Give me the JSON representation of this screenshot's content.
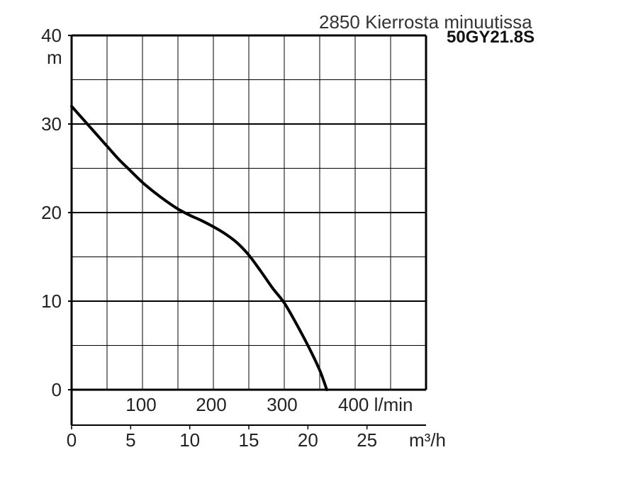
{
  "chart_data": {
    "type": "line",
    "title": "2850 Kierrosta minuutissa",
    "subtitle": "50GY21.8S",
    "y_unit": "m",
    "x_unit_bottom": "m³/h",
    "x_unit_top": "l/min",
    "ylim": [
      0,
      40
    ],
    "y_ticks": [
      "0",
      "10",
      "20",
      "30",
      "40"
    ],
    "xlim_m3h": [
      0,
      30
    ],
    "x_ticks_m3h": [
      "0",
      "5",
      "10",
      "15",
      "20",
      "25"
    ],
    "x_ticks_lmin": [
      "100",
      "200",
      "300",
      "400 l/min"
    ],
    "grid": true,
    "series": [
      {
        "x": [
          0,
          1,
          2,
          3,
          4,
          5,
          6,
          7,
          8,
          9,
          10,
          11,
          12,
          13,
          14,
          15,
          16,
          17,
          18,
          19,
          20,
          21,
          21.6
        ],
        "values": [
          32,
          30.5,
          29,
          27.5,
          26,
          24.7,
          23.4,
          22.3,
          21.3,
          20.4,
          19.7,
          19.1,
          18.4,
          17.6,
          16.6,
          15.2,
          13.4,
          11.5,
          9.8,
          7.5,
          5,
          2.2,
          0
        ]
      }
    ]
  }
}
